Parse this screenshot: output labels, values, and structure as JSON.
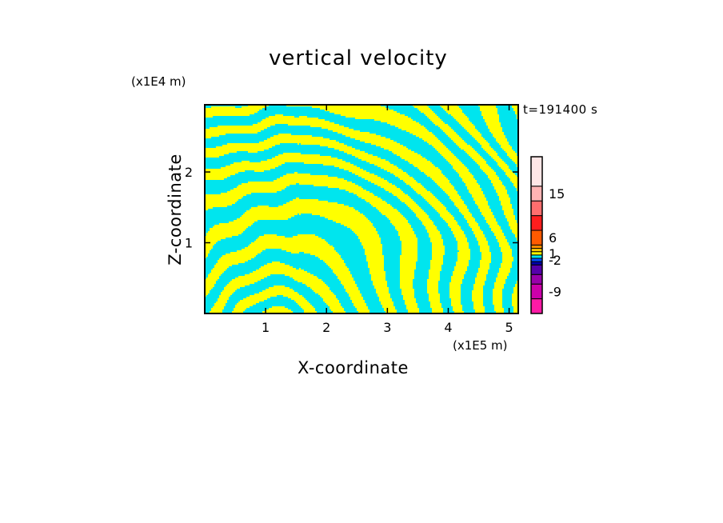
{
  "chart_data": {
    "type": "heatmap",
    "title": "vertical velocity",
    "xlabel": "X-coordinate",
    "ylabel": "Z-coordinate",
    "x_unit_label": "(x1E5 m)",
    "y_unit_label": "(x1E4 m)",
    "time_label": "t=191400 s",
    "xlim": [
      0,
      5.15
    ],
    "ylim": [
      0,
      2.95
    ],
    "x_ticks": [
      1,
      2,
      3,
      4,
      5
    ],
    "x_tick_labels": [
      "1",
      "2",
      "3",
      "4",
      "5"
    ],
    "y_ticks": [
      1,
      2
    ],
    "y_tick_labels": [
      "1",
      "2"
    ],
    "field_colors": [
      "#00e5ee",
      "#ffff00"
    ],
    "colorbar": {
      "colors": [
        "#ff1aa5",
        "#cc00aa",
        "#9900aa",
        "#5500aa",
        "#0000aa",
        "#0050ff",
        "#00e5ee",
        "#ffff00",
        "#ffc800",
        "#ff8c00",
        "#ff5a00",
        "#ff1e1e",
        "#ff6e6e",
        "#ffb4b4",
        "#ffe6e6"
      ],
      "band_weights": [
        2,
        2,
        1.3,
        1.3,
        0.45,
        0.45,
        0.45,
        0.45,
        0.45,
        0.45,
        2,
        2,
        2,
        2,
        4
      ],
      "ticks": [
        {
          "label": "-9",
          "value": -9
        },
        {
          "label": "-2",
          "value": -2
        },
        {
          "label": "1",
          "value": 1
        },
        {
          "label": "6",
          "value": 6
        },
        {
          "label": "15",
          "value": 15
        }
      ]
    }
  }
}
